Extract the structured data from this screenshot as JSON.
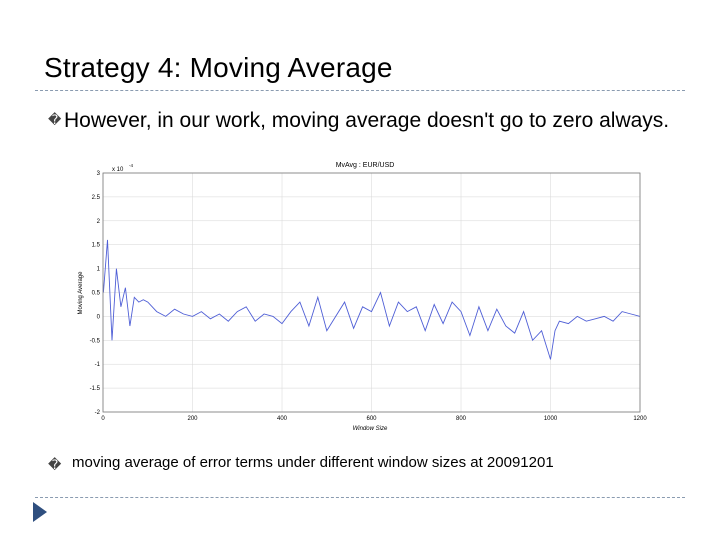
{
  "slide": {
    "title": "Strategy 4: Moving Average",
    "bullet_symbol": "�",
    "bullet1": "However, in our work, moving average doesn't go to zero always.",
    "bullet2": "moving average of error terms under different window sizes at 20091201"
  },
  "chart_data": {
    "type": "line",
    "title": "MvAvg : EUR/USD",
    "xlabel": "Window Size",
    "ylabel": "Moving Average",
    "y_multiplier": "x 10",
    "y_exponent": "-4",
    "xlim": [
      0,
      1200
    ],
    "ylim": [
      -2,
      3
    ],
    "x_ticks": [
      0,
      200,
      400,
      600,
      800,
      1000,
      1200
    ],
    "y_ticks": [
      -2,
      -1.5,
      -1,
      -0.5,
      0,
      0.5,
      1,
      1.5,
      2,
      2.5,
      3
    ],
    "grid": true,
    "series_color": "#4f5fd6",
    "series": [
      {
        "x": [
          1,
          10,
          20,
          30,
          40,
          50,
          60,
          70,
          80,
          90,
          100,
          120,
          140,
          160,
          180,
          200,
          220,
          240,
          260,
          280,
          300,
          320,
          340,
          360,
          380,
          400,
          420,
          440,
          460,
          480,
          500,
          520,
          540,
          560,
          580,
          600,
          620,
          640,
          660,
          680,
          700,
          720,
          740,
          760,
          780,
          800,
          820,
          840,
          860,
          880,
          900,
          920,
          940,
          960,
          980,
          1000,
          1010,
          1020,
          1040,
          1060,
          1080,
          1100,
          1120,
          1140,
          1160,
          1180,
          1200
        ],
        "values": [
          0.5,
          1.6,
          -0.5,
          1.0,
          0.2,
          0.6,
          -0.2,
          0.4,
          0.3,
          0.35,
          0.3,
          0.1,
          0.0,
          0.15,
          0.05,
          0.0,
          0.1,
          -0.05,
          0.05,
          -0.1,
          0.1,
          0.2,
          -0.1,
          0.05,
          0.0,
          -0.15,
          0.1,
          0.3,
          -0.2,
          0.4,
          -0.3,
          0.0,
          0.3,
          -0.25,
          0.2,
          0.1,
          0.5,
          -0.2,
          0.3,
          0.1,
          0.2,
          -0.3,
          0.25,
          -0.15,
          0.3,
          0.1,
          -0.4,
          0.2,
          -0.3,
          0.15,
          -0.2,
          -0.35,
          0.1,
          -0.5,
          -0.3,
          -0.9,
          -0.3,
          -0.1,
          -0.15,
          0.0,
          -0.1,
          -0.05,
          0.0,
          -0.1,
          0.1,
          0.05,
          0.0
        ]
      }
    ]
  }
}
